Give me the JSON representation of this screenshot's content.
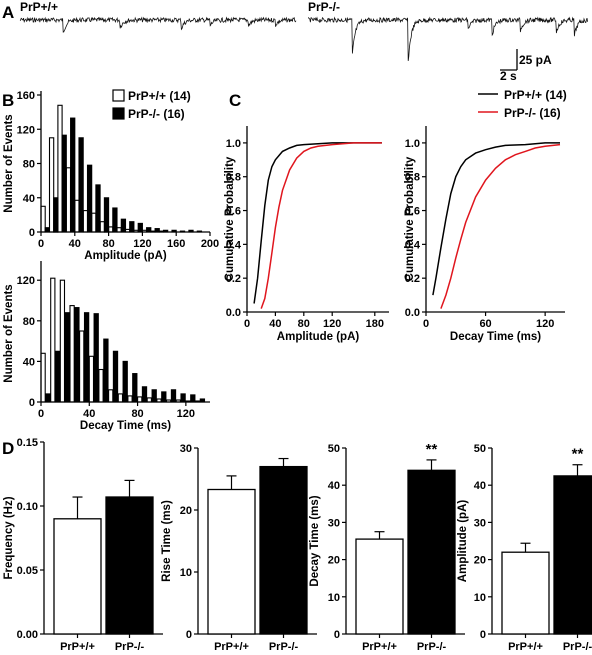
{
  "panel_A": {
    "label": "A",
    "trace_wt_label": "PrP+/+",
    "trace_ko_label": "PrP-/-",
    "scalebar_y": "25 pA",
    "scalebar_x": "2 s"
  },
  "panel_B": {
    "label": "B",
    "legend": [
      {
        "name": "PrP+/+ (14)",
        "fill": "#ffffff"
      },
      {
        "name": "PrP-/- (16)",
        "fill": "#000000"
      }
    ]
  },
  "panel_C": {
    "label": "C",
    "legend": [
      {
        "name": "PrP+/+ (14)",
        "color": "#000000"
      },
      {
        "name": "PrP-/- (16)",
        "color": "#e0161e"
      }
    ]
  },
  "panel_D": {
    "label": "D",
    "significance": "**"
  },
  "chart_data": [
    {
      "id": "B-amplitude",
      "type": "bar",
      "xlabel": "Amplitude (pA)",
      "ylabel": "Number of Events",
      "xlim": [
        0,
        200
      ],
      "ylim": [
        0,
        160
      ],
      "xticks": [
        0,
        40,
        80,
        120,
        160,
        200
      ],
      "yticks": [
        0,
        40,
        80,
        120,
        160
      ],
      "bin_width": 5,
      "series": [
        {
          "name": "PrP+/+ (14)",
          "fill": "#ffffff",
          "x": [
            0,
            10,
            20,
            30,
            40,
            50,
            60,
            70,
            80,
            90,
            100,
            110,
            120,
            130,
            140
          ],
          "values": [
            30,
            110,
            148,
            75,
            37,
            25,
            22,
            12,
            6,
            5,
            3,
            2,
            2,
            1,
            1
          ]
        },
        {
          "name": "PrP-/- (16)",
          "fill": "#000000",
          "x": [
            5,
            15,
            25,
            35,
            45,
            55,
            65,
            75,
            85,
            95,
            105,
            115,
            125,
            135,
            145,
            155,
            165,
            175,
            185
          ],
          "values": [
            5,
            40,
            113,
            133,
            110,
            78,
            55,
            40,
            28,
            15,
            12,
            10,
            5,
            4,
            2,
            2,
            1,
            2,
            1
          ]
        }
      ]
    },
    {
      "id": "B-decay",
      "type": "bar",
      "xlabel": "Decay Time (ms)",
      "ylabel": "Number of Events",
      "xlim": [
        0,
        140
      ],
      "ylim": [
        0,
        135
      ],
      "xticks": [
        0,
        40,
        80,
        120
      ],
      "yticks": [
        0,
        40,
        80,
        120
      ],
      "bin_width": 3.5,
      "series": [
        {
          "name": "PrP+/+ (14)",
          "fill": "#ffffff",
          "x": [
            0,
            8,
            16,
            24,
            32,
            40,
            48,
            56,
            64,
            72,
            80,
            88,
            96,
            104,
            112,
            120,
            128
          ],
          "values": [
            48,
            122,
            120,
            95,
            70,
            45,
            32,
            12,
            8,
            6,
            5,
            4,
            3,
            2,
            2,
            1,
            1
          ]
        },
        {
          "name": "PrP-/- (16)",
          "fill": "#000000",
          "x": [
            4,
            12,
            20,
            28,
            36,
            44,
            52,
            60,
            68,
            76,
            84,
            92,
            100,
            108,
            116,
            124,
            132
          ],
          "values": [
            8,
            50,
            88,
            93,
            88,
            87,
            62,
            50,
            40,
            28,
            15,
            12,
            10,
            12,
            8,
            7,
            3
          ]
        }
      ]
    },
    {
      "id": "C-amplitude",
      "type": "line",
      "xlabel": "Amplitude (pA)",
      "ylabel": "Cumulative Probability",
      "xlim": [
        0,
        200
      ],
      "ylim": [
        0,
        1.1
      ],
      "xticks": [
        0,
        40,
        80,
        120,
        180
      ],
      "xtick_labels": [
        "0",
        "40",
        "80",
        "120",
        "180"
      ],
      "yticks": [
        0,
        0.2,
        0.4,
        0.6,
        0.8,
        1.0
      ],
      "series": [
        {
          "name": "PrP+/+ (14)",
          "color": "#000000",
          "x": [
            10,
            15,
            20,
            25,
            30,
            35,
            40,
            50,
            60,
            70,
            80,
            100,
            120,
            150,
            190
          ],
          "y": [
            0.05,
            0.2,
            0.42,
            0.63,
            0.78,
            0.86,
            0.9,
            0.95,
            0.97,
            0.985,
            0.99,
            0.995,
            1.0,
            1.0,
            1.0
          ]
        },
        {
          "name": "PrP-/- (16)",
          "color": "#e0161e",
          "x": [
            20,
            25,
            30,
            35,
            40,
            45,
            50,
            60,
            70,
            80,
            90,
            100,
            120,
            150,
            190
          ],
          "y": [
            0.02,
            0.08,
            0.2,
            0.35,
            0.5,
            0.62,
            0.72,
            0.84,
            0.91,
            0.95,
            0.97,
            0.98,
            0.99,
            1.0,
            1.0
          ]
        }
      ]
    },
    {
      "id": "C-decay",
      "type": "line",
      "xlabel": "Decay Time (ms)",
      "ylabel": "Cumulative Probability",
      "xlim": [
        0,
        140
      ],
      "ylim": [
        0,
        1.1
      ],
      "xticks": [
        0,
        60,
        120
      ],
      "yticks": [
        0,
        0.2,
        0.4,
        0.6,
        0.8,
        1.0
      ],
      "series": [
        {
          "name": "PrP+/+ (14)",
          "color": "#000000",
          "x": [
            7,
            10,
            15,
            20,
            25,
            30,
            35,
            40,
            50,
            60,
            70,
            80,
            100,
            120,
            135
          ],
          "y": [
            0.1,
            0.2,
            0.38,
            0.55,
            0.7,
            0.8,
            0.86,
            0.9,
            0.94,
            0.96,
            0.975,
            0.985,
            0.99,
            1.0,
            1.0
          ]
        },
        {
          "name": "PrP-/- (16)",
          "color": "#e0161e",
          "x": [
            15,
            20,
            25,
            30,
            35,
            40,
            50,
            60,
            70,
            80,
            90,
            100,
            110,
            120,
            135
          ],
          "y": [
            0.02,
            0.1,
            0.2,
            0.32,
            0.43,
            0.53,
            0.68,
            0.78,
            0.85,
            0.9,
            0.93,
            0.95,
            0.97,
            0.98,
            0.99
          ]
        }
      ]
    },
    {
      "id": "D-frequency",
      "type": "bar",
      "ylabel": "Frequency (Hz)",
      "categories": [
        "PrP+/+",
        "PrP-/-"
      ],
      "values": [
        0.09,
        0.107
      ],
      "errors": [
        0.017,
        0.013
      ],
      "fills": [
        "#ffffff",
        "#000000"
      ],
      "ylim": [
        0,
        0.15
      ],
      "yticks": [
        0,
        0.05,
        0.1,
        0.15
      ],
      "ytick_labels": [
        "0.00",
        "0.05",
        "0.10",
        "0.15"
      ],
      "significant": [
        false,
        false
      ]
    },
    {
      "id": "D-rise",
      "type": "bar",
      "ylabel": "Rise Time (ms)",
      "categories": [
        "PrP+/+",
        "PrP-/-"
      ],
      "values": [
        23.3,
        27.0
      ],
      "errors": [
        2.2,
        1.3
      ],
      "fills": [
        "#ffffff",
        "#000000"
      ],
      "ylim": [
        0,
        30
      ],
      "yticks": [
        0,
        10,
        20,
        30
      ],
      "ytick_labels": [
        "0",
        "10",
        "20",
        "30"
      ],
      "significant": [
        false,
        false
      ]
    },
    {
      "id": "D-decay",
      "type": "bar",
      "ylabel": "Decay Time (ms)",
      "categories": [
        "PrP+/+",
        "PrP-/-"
      ],
      "values": [
        25.5,
        44.0
      ],
      "errors": [
        2.0,
        2.8
      ],
      "fills": [
        "#ffffff",
        "#000000"
      ],
      "ylim": [
        0,
        50
      ],
      "yticks": [
        0,
        10,
        20,
        30,
        40,
        50
      ],
      "ytick_labels": [
        "0",
        "10",
        "20",
        "30",
        "40",
        "50"
      ],
      "significant": [
        false,
        true
      ]
    },
    {
      "id": "D-amplitude",
      "type": "bar",
      "ylabel": "Amplitude (pA)",
      "categories": [
        "PrP+/+",
        "PrP-/-"
      ],
      "values": [
        22.0,
        42.5
      ],
      "errors": [
        2.4,
        3.0
      ],
      "fills": [
        "#ffffff",
        "#000000"
      ],
      "ylim": [
        0,
        50
      ],
      "yticks": [
        0,
        10,
        20,
        30,
        40,
        50
      ],
      "ytick_labels": [
        "0",
        "10",
        "20",
        "30",
        "40",
        "50"
      ],
      "significant": [
        false,
        true
      ]
    }
  ]
}
